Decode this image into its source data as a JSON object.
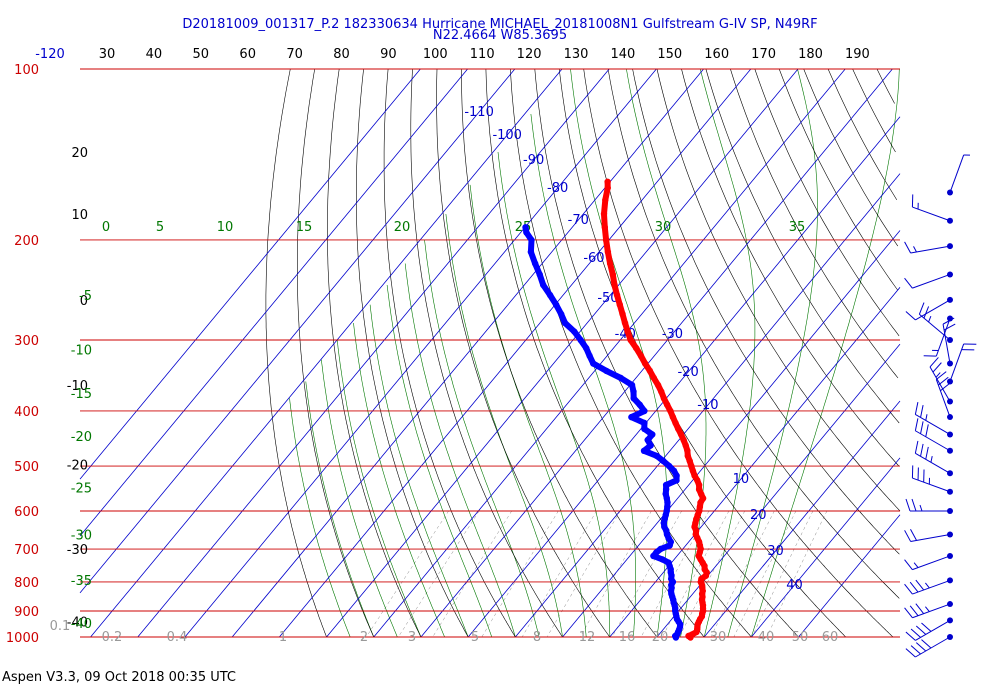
{
  "header": {
    "title_line1": "D20181009_001317_P.2 182330634 Hurricane MICHAEL_20181008N1 Gulfstream G-IV SP, N49RF",
    "title_line2": "N22.4664 W85.3695"
  },
  "footer": {
    "text": "Aspen V3.3, 09 Oct 2018  00:35 UTC"
  },
  "colors": {
    "pressure_lines": "#cc0000",
    "isotherms": "#0000cc",
    "dry_adiabats": "#000000",
    "moist_adiabats": "#007700",
    "mixing_ratio": "#888888",
    "temperature": "#ff0000",
    "dewpoint": "#0000ff"
  },
  "chart_data": {
    "type": "skew-t",
    "pressure_labels": [
      "100",
      "200",
      "300",
      "400",
      "500",
      "600",
      "700",
      "800",
      "900",
      "1000"
    ],
    "pressure_levels_hpa": [
      100,
      200,
      300,
      400,
      500,
      600,
      700,
      800,
      900,
      1000
    ],
    "top_temperature_labels": [
      "-120",
      "30",
      "40",
      "50",
      "60",
      "70",
      "80",
      "90",
      "100",
      "110",
      "120",
      "130",
      "140",
      "150",
      "160",
      "170",
      "180",
      "190"
    ],
    "top_temperature_values": [
      -120,
      30,
      40,
      50,
      60,
      70,
      80,
      90,
      100,
      110,
      120,
      130,
      140,
      150,
      160,
      170,
      180,
      190
    ],
    "isotherm_labels": [
      {
        "text": "-110",
        "value": -110
      },
      {
        "text": "-100",
        "value": -100
      },
      {
        "text": "-90",
        "value": -90
      },
      {
        "text": "-80",
        "value": -80
      },
      {
        "text": "-70",
        "value": -70
      },
      {
        "text": "-60",
        "value": -60
      },
      {
        "text": "-50",
        "value": -50
      },
      {
        "text": "-40",
        "value": -40
      },
      {
        "text": "-30",
        "value": -30
      },
      {
        "text": "-20",
        "value": -20
      },
      {
        "text": "-10",
        "value": -10
      },
      {
        "text": "10",
        "value": 10
      },
      {
        "text": "20",
        "value": 20
      },
      {
        "text": "30",
        "value": 30
      },
      {
        "text": "40",
        "value": 40
      }
    ],
    "dry_adiabat_labels": [
      {
        "text": "20",
        "pressure": 140
      },
      {
        "text": "10",
        "pressure": 180
      },
      {
        "text": "0",
        "pressure": 255
      },
      {
        "text": "-10",
        "pressure": 360
      },
      {
        "text": "-20",
        "pressure": 497
      },
      {
        "text": "-30",
        "pressure": 700
      },
      {
        "text": "-40",
        "pressure": 940
      }
    ],
    "moist_adiabat_labels_top": [
      {
        "text": "0",
        "value": 0
      },
      {
        "text": "5",
        "value": 5
      },
      {
        "text": "10",
        "value": 10
      },
      {
        "text": "15",
        "value": 15
      },
      {
        "text": "20",
        "value": 20
      },
      {
        "text": "25",
        "value": 25
      },
      {
        "text": "30",
        "value": 30
      },
      {
        "text": "35",
        "value": 35
      }
    ],
    "moist_adiabat_labels_left": [
      {
        "text": "-5",
        "pressure": 250
      },
      {
        "text": "-10",
        "pressure": 312
      },
      {
        "text": "-15",
        "pressure": 372
      },
      {
        "text": "-20",
        "pressure": 443
      },
      {
        "text": "-25",
        "pressure": 545
      },
      {
        "text": "-30",
        "pressure": 660
      },
      {
        "text": "-35",
        "pressure": 793
      },
      {
        "text": "-40",
        "pressure": 945
      }
    ],
    "mixing_ratio_labels": [
      "0.1",
      "0.2",
      "0.4",
      "1",
      "2",
      "3",
      "5",
      "8",
      "12",
      "16",
      "20",
      "30",
      "40",
      "50",
      "60"
    ],
    "temperature_profile": {
      "name": "Temperature",
      "pressure": [
        1002,
        996,
        990,
        980,
        970,
        960,
        950,
        940,
        930,
        920,
        910,
        900,
        890,
        880,
        870,
        860,
        850,
        840,
        830,
        820,
        810,
        800,
        790,
        780,
        770,
        760,
        750,
        740,
        730,
        720,
        710,
        700,
        690,
        680,
        670,
        660,
        650,
        640,
        630,
        620,
        610,
        600,
        590,
        580,
        570,
        560,
        550,
        540,
        530,
        520,
        510,
        500,
        490,
        480,
        470,
        460,
        450,
        440,
        430,
        420,
        410,
        400,
        390,
        380,
        370,
        360,
        350,
        340,
        330,
        320,
        310,
        300,
        290,
        280,
        270,
        260,
        250,
        240,
        230,
        220,
        210,
        200,
        190,
        180,
        170,
        162,
        158
      ],
      "temp_c": [
        27.2,
        26.5,
        27.0,
        27.5,
        27.2,
        26.8,
        26.4,
        26.2,
        26.0,
        25.9,
        25.5,
        25.2,
        24.7,
        24.2,
        23.6,
        23.0,
        22.6,
        22.0,
        21.6,
        21.0,
        20.4,
        19.6,
        19.2,
        19.6,
        19.2,
        18.2,
        17.6,
        16.6,
        15.6,
        14.6,
        14.2,
        13.8,
        13.0,
        12.2,
        11.2,
        10.2,
        9.6,
        8.6,
        8.1,
        7.6,
        7.2,
        6.8,
        6.2,
        5.6,
        5.4,
        4.2,
        3.0,
        2.2,
        1.0,
        -0.4,
        -1.6,
        -2.8,
        -4.0,
        -5.3,
        -6.3,
        -7.6,
        -9.0,
        -10.5,
        -12.1,
        -13.7,
        -15.3,
        -16.9,
        -18.7,
        -20.5,
        -22.2,
        -24.1,
        -26.2,
        -28.3,
        -30.6,
        -32.8,
        -35.2,
        -37.8,
        -39.9,
        -42.0,
        -44.1,
        -46.3,
        -48.6,
        -50.9,
        -53.1,
        -55.6,
        -58.1,
        -60.6,
        -63.1,
        -65.6,
        -67.8,
        -69.4,
        -70.5
      ]
    },
    "dewpoint_profile": {
      "name": "Dewpoint",
      "pressure": [
        1002,
        996,
        990,
        980,
        970,
        960,
        950,
        940,
        930,
        920,
        910,
        900,
        890,
        880,
        870,
        860,
        850,
        840,
        830,
        820,
        810,
        800,
        790,
        780,
        770,
        760,
        750,
        740,
        730,
        720,
        710,
        700,
        690,
        680,
        670,
        660,
        650,
        640,
        630,
        620,
        610,
        600,
        590,
        580,
        570,
        560,
        550,
        540,
        530,
        520,
        510,
        500,
        490,
        480,
        470,
        460,
        450,
        440,
        430,
        420,
        410,
        400,
        390,
        380,
        370,
        360,
        350,
        340,
        330,
        320,
        310,
        300,
        290,
        280,
        270,
        260,
        250,
        240,
        230,
        220,
        210,
        200,
        194,
        190
      ],
      "dewpt_c": [
        24.1,
        23.7,
        23.8,
        23.6,
        23.4,
        23.1,
        22.7,
        21.9,
        21.1,
        20.5,
        19.9,
        19.3,
        18.8,
        18.2,
        17.5,
        16.9,
        16.2,
        15.5,
        14.9,
        14.5,
        13.9,
        13.7,
        12.8,
        12.3,
        11.6,
        11.0,
        10.2,
        9.4,
        7.5,
        5.0,
        5.0,
        5.3,
        6.6,
        6.2,
        5.1,
        4.1,
        3.3,
        2.2,
        1.4,
        0.9,
        0.4,
        -0.1,
        -0.7,
        -1.4,
        -2.3,
        -3.3,
        -4.0,
        -4.8,
        -3.4,
        -4.2,
        -5.6,
        -7.5,
        -9.6,
        -11.9,
        -15.5,
        -15.0,
        -16.6,
        -16.6,
        -19.3,
        -20.3,
        -24.1,
        -22.4,
        -24.5,
        -26.9,
        -28.1,
        -29.6,
        -33.2,
        -37.5,
        -41.6,
        -43.7,
        -45.8,
        -48.4,
        -51.2,
        -54.7,
        -57.1,
        -59.8,
        -62.8,
        -66.0,
        -68.6,
        -71.5,
        -74.4,
        -76.4,
        -78.8,
        -79.9
      ]
    },
    "wind_barbs": {
      "pressure": [
        165,
        185,
        205,
        230,
        255,
        275,
        300,
        330,
        355,
        385,
        410,
        440,
        470,
        515,
        555,
        600,
        660,
        720,
        795,
        875,
        935,
        1000
      ],
      "speed_kt": [
        5,
        15,
        15,
        10,
        10,
        15,
        25,
        20,
        20,
        25,
        30,
        25,
        30,
        35,
        35,
        25,
        20,
        15,
        35,
        35,
        40,
        40
      ],
      "direction_deg": [
        20,
        290,
        260,
        250,
        240,
        200,
        310,
        350,
        20,
        330,
        340,
        300,
        300,
        300,
        290,
        270,
        260,
        250,
        250,
        250,
        240,
        240
      ]
    }
  }
}
